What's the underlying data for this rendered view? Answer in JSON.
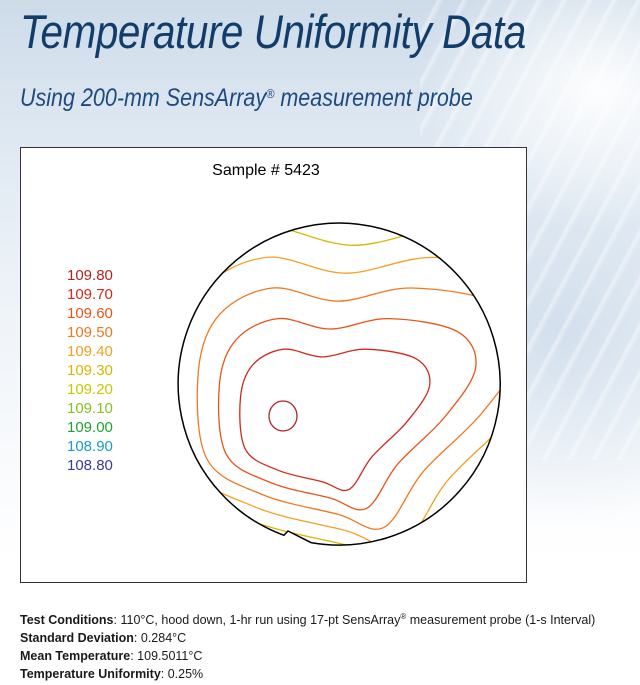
{
  "header": {
    "title": "Temperature Uniformity Data",
    "subtitle_pre": "Using 200-mm SensArray",
    "subtitle_mark": "®",
    "subtitle_post": " measurement probe"
  },
  "chart_data": {
    "type": "contour",
    "title": "Sample # 5423",
    "legend": [
      {
        "label": "109.80",
        "color": "#b22222"
      },
      {
        "label": "109.70",
        "color": "#cf2a1a"
      },
      {
        "label": "109.60",
        "color": "#e8541a"
      },
      {
        "label": "109.50",
        "color": "#f07820"
      },
      {
        "label": "109.40",
        "color": "#f4a020"
      },
      {
        "label": "109.30",
        "color": "#d9b700"
      },
      {
        "label": "109.20",
        "color": "#c8c800"
      },
      {
        "label": "109.10",
        "color": "#86c21e"
      },
      {
        "label": "109.00",
        "color": "#1fa32e"
      },
      {
        "label": "108.90",
        "color": "#1a9bc9"
      },
      {
        "label": "108.80",
        "color": "#3a3a9c"
      }
    ],
    "levels": [
      109.8,
      109.7,
      109.6,
      109.5,
      109.4,
      109.3,
      109.2,
      109.1,
      109.0,
      108.9,
      108.8
    ],
    "wafer": "200-mm"
  },
  "info": {
    "conditions_label": "Test Conditions",
    "conditions_value": ": 110°C, hood down, 1-hr run using 17-pt SensArray",
    "conditions_mark": "®",
    "conditions_tail": " measurement probe (1-s Interval)",
    "stddev_label": "Standard Deviation",
    "stddev_value": ": 0.284°C",
    "mean_label": "Mean Temperature",
    "mean_value": ": 109.5011°C",
    "uniformity_label": "Temperature Uniformity",
    "uniformity_value": ": 0.25%"
  }
}
